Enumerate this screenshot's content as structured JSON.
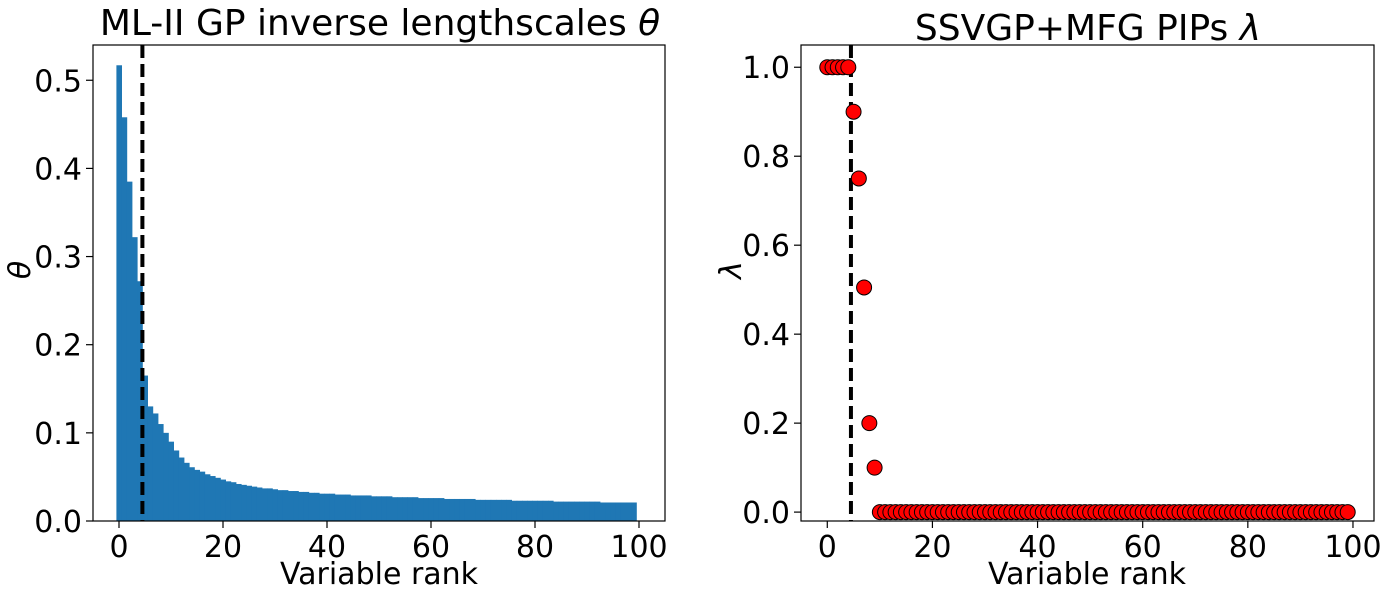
{
  "chart_data": [
    {
      "type": "bar",
      "title": "ML-II GP inverse lengthscales",
      "title_symbol": "θ",
      "xlabel": "Variable rank",
      "ylabel": "θ",
      "xlim": [
        -5,
        105
      ],
      "ylim": [
        0,
        0.54
      ],
      "xticks": [
        0,
        20,
        40,
        60,
        80,
        100
      ],
      "yticks": [
        0.0,
        0.1,
        0.2,
        0.3,
        0.4,
        0.5
      ],
      "xtick_labels": [
        "0",
        "20",
        "40",
        "60",
        "80",
        "100"
      ],
      "ytick_labels": [
        "0.0",
        "0.1",
        "0.2",
        "0.3",
        "0.4",
        "0.5"
      ],
      "bar_color": "#1f77b4",
      "vline": {
        "x": 4.5,
        "style": "dashed",
        "color": "#000000"
      },
      "x": [
        0,
        1,
        2,
        3,
        4,
        5,
        6,
        7,
        8,
        9,
        10,
        11,
        12,
        13,
        14,
        15,
        16,
        17,
        18,
        19,
        20,
        21,
        22,
        23,
        24,
        25,
        26,
        27,
        28,
        29,
        30,
        31,
        32,
        33,
        34,
        35,
        36,
        37,
        38,
        39,
        40,
        41,
        42,
        43,
        44,
        45,
        46,
        47,
        48,
        49,
        50,
        51,
        52,
        53,
        54,
        55,
        56,
        57,
        58,
        59,
        60,
        61,
        62,
        63,
        64,
        65,
        66,
        67,
        68,
        69,
        70,
        71,
        72,
        73,
        74,
        75,
        76,
        77,
        78,
        79,
        80,
        81,
        82,
        83,
        84,
        85,
        86,
        87,
        88,
        89,
        90,
        91,
        92,
        93,
        94,
        95,
        96,
        97,
        98,
        99
      ],
      "values": [
        0.517,
        0.458,
        0.385,
        0.322,
        0.272,
        0.165,
        0.13,
        0.122,
        0.11,
        0.1,
        0.09,
        0.08,
        0.072,
        0.066,
        0.061,
        0.058,
        0.056,
        0.053,
        0.051,
        0.049,
        0.047,
        0.045,
        0.044,
        0.042,
        0.041,
        0.04,
        0.039,
        0.038,
        0.037,
        0.037,
        0.036,
        0.035,
        0.035,
        0.034,
        0.034,
        0.033,
        0.033,
        0.032,
        0.032,
        0.031,
        0.031,
        0.031,
        0.03,
        0.03,
        0.03,
        0.029,
        0.029,
        0.029,
        0.029,
        0.028,
        0.028,
        0.028,
        0.028,
        0.027,
        0.027,
        0.027,
        0.027,
        0.027,
        0.026,
        0.026,
        0.026,
        0.026,
        0.026,
        0.025,
        0.025,
        0.025,
        0.025,
        0.025,
        0.025,
        0.024,
        0.024,
        0.024,
        0.024,
        0.024,
        0.024,
        0.024,
        0.023,
        0.023,
        0.023,
        0.023,
        0.023,
        0.023,
        0.023,
        0.023,
        0.022,
        0.022,
        0.022,
        0.022,
        0.022,
        0.022,
        0.022,
        0.022,
        0.022,
        0.021,
        0.021,
        0.021,
        0.021,
        0.021,
        0.021,
        0.021
      ]
    },
    {
      "type": "scatter",
      "title": "SSVGP+MFG PIPs",
      "title_symbol": "λ",
      "xlabel": "Variable rank",
      "ylabel": "λ",
      "xlim": [
        -5,
        104
      ],
      "ylim": [
        -0.02,
        1.05
      ],
      "xticks": [
        0,
        20,
        40,
        60,
        80,
        100
      ],
      "yticks": [
        0.0,
        0.2,
        0.4,
        0.6,
        0.8,
        1.0
      ],
      "xtick_labels": [
        "0",
        "20",
        "40",
        "60",
        "80",
        "100"
      ],
      "ytick_labels": [
        "0.0",
        "0.2",
        "0.4",
        "0.6",
        "0.8",
        "1.0"
      ],
      "marker_color": "#ff0000",
      "marker_edge": "#000000",
      "vline": {
        "x": 4.5,
        "style": "dashed",
        "color": "#000000"
      },
      "x": [
        0,
        1,
        2,
        3,
        4,
        5,
        6,
        7,
        8,
        9,
        10,
        11,
        12,
        13,
        14,
        15,
        16,
        17,
        18,
        19,
        20,
        21,
        22,
        23,
        24,
        25,
        26,
        27,
        28,
        29,
        30,
        31,
        32,
        33,
        34,
        35,
        36,
        37,
        38,
        39,
        40,
        41,
        42,
        43,
        44,
        45,
        46,
        47,
        48,
        49,
        50,
        51,
        52,
        53,
        54,
        55,
        56,
        57,
        58,
        59,
        60,
        61,
        62,
        63,
        64,
        65,
        66,
        67,
        68,
        69,
        70,
        71,
        72,
        73,
        74,
        75,
        76,
        77,
        78,
        79,
        80,
        81,
        82,
        83,
        84,
        85,
        86,
        87,
        88,
        89,
        90,
        91,
        92,
        93,
        94,
        95,
        96,
        97,
        98,
        99
      ],
      "values": [
        1,
        1,
        1,
        1,
        1,
        0.9,
        0.75,
        0.505,
        0.2,
        0.1,
        0,
        0,
        0,
        0,
        0,
        0,
        0,
        0,
        0,
        0,
        0,
        0,
        0,
        0,
        0,
        0,
        0,
        0,
        0,
        0,
        0,
        0,
        0,
        0,
        0,
        0,
        0,
        0,
        0,
        0,
        0,
        0,
        0,
        0,
        0,
        0,
        0,
        0,
        0,
        0,
        0,
        0,
        0,
        0,
        0,
        0,
        0,
        0,
        0,
        0,
        0,
        0,
        0,
        0,
        0,
        0,
        0,
        0,
        0,
        0,
        0,
        0,
        0,
        0,
        0,
        0,
        0,
        0,
        0,
        0,
        0,
        0,
        0,
        0,
        0,
        0,
        0,
        0,
        0,
        0,
        0,
        0,
        0,
        0,
        0,
        0,
        0,
        0,
        0,
        0
      ]
    }
  ]
}
